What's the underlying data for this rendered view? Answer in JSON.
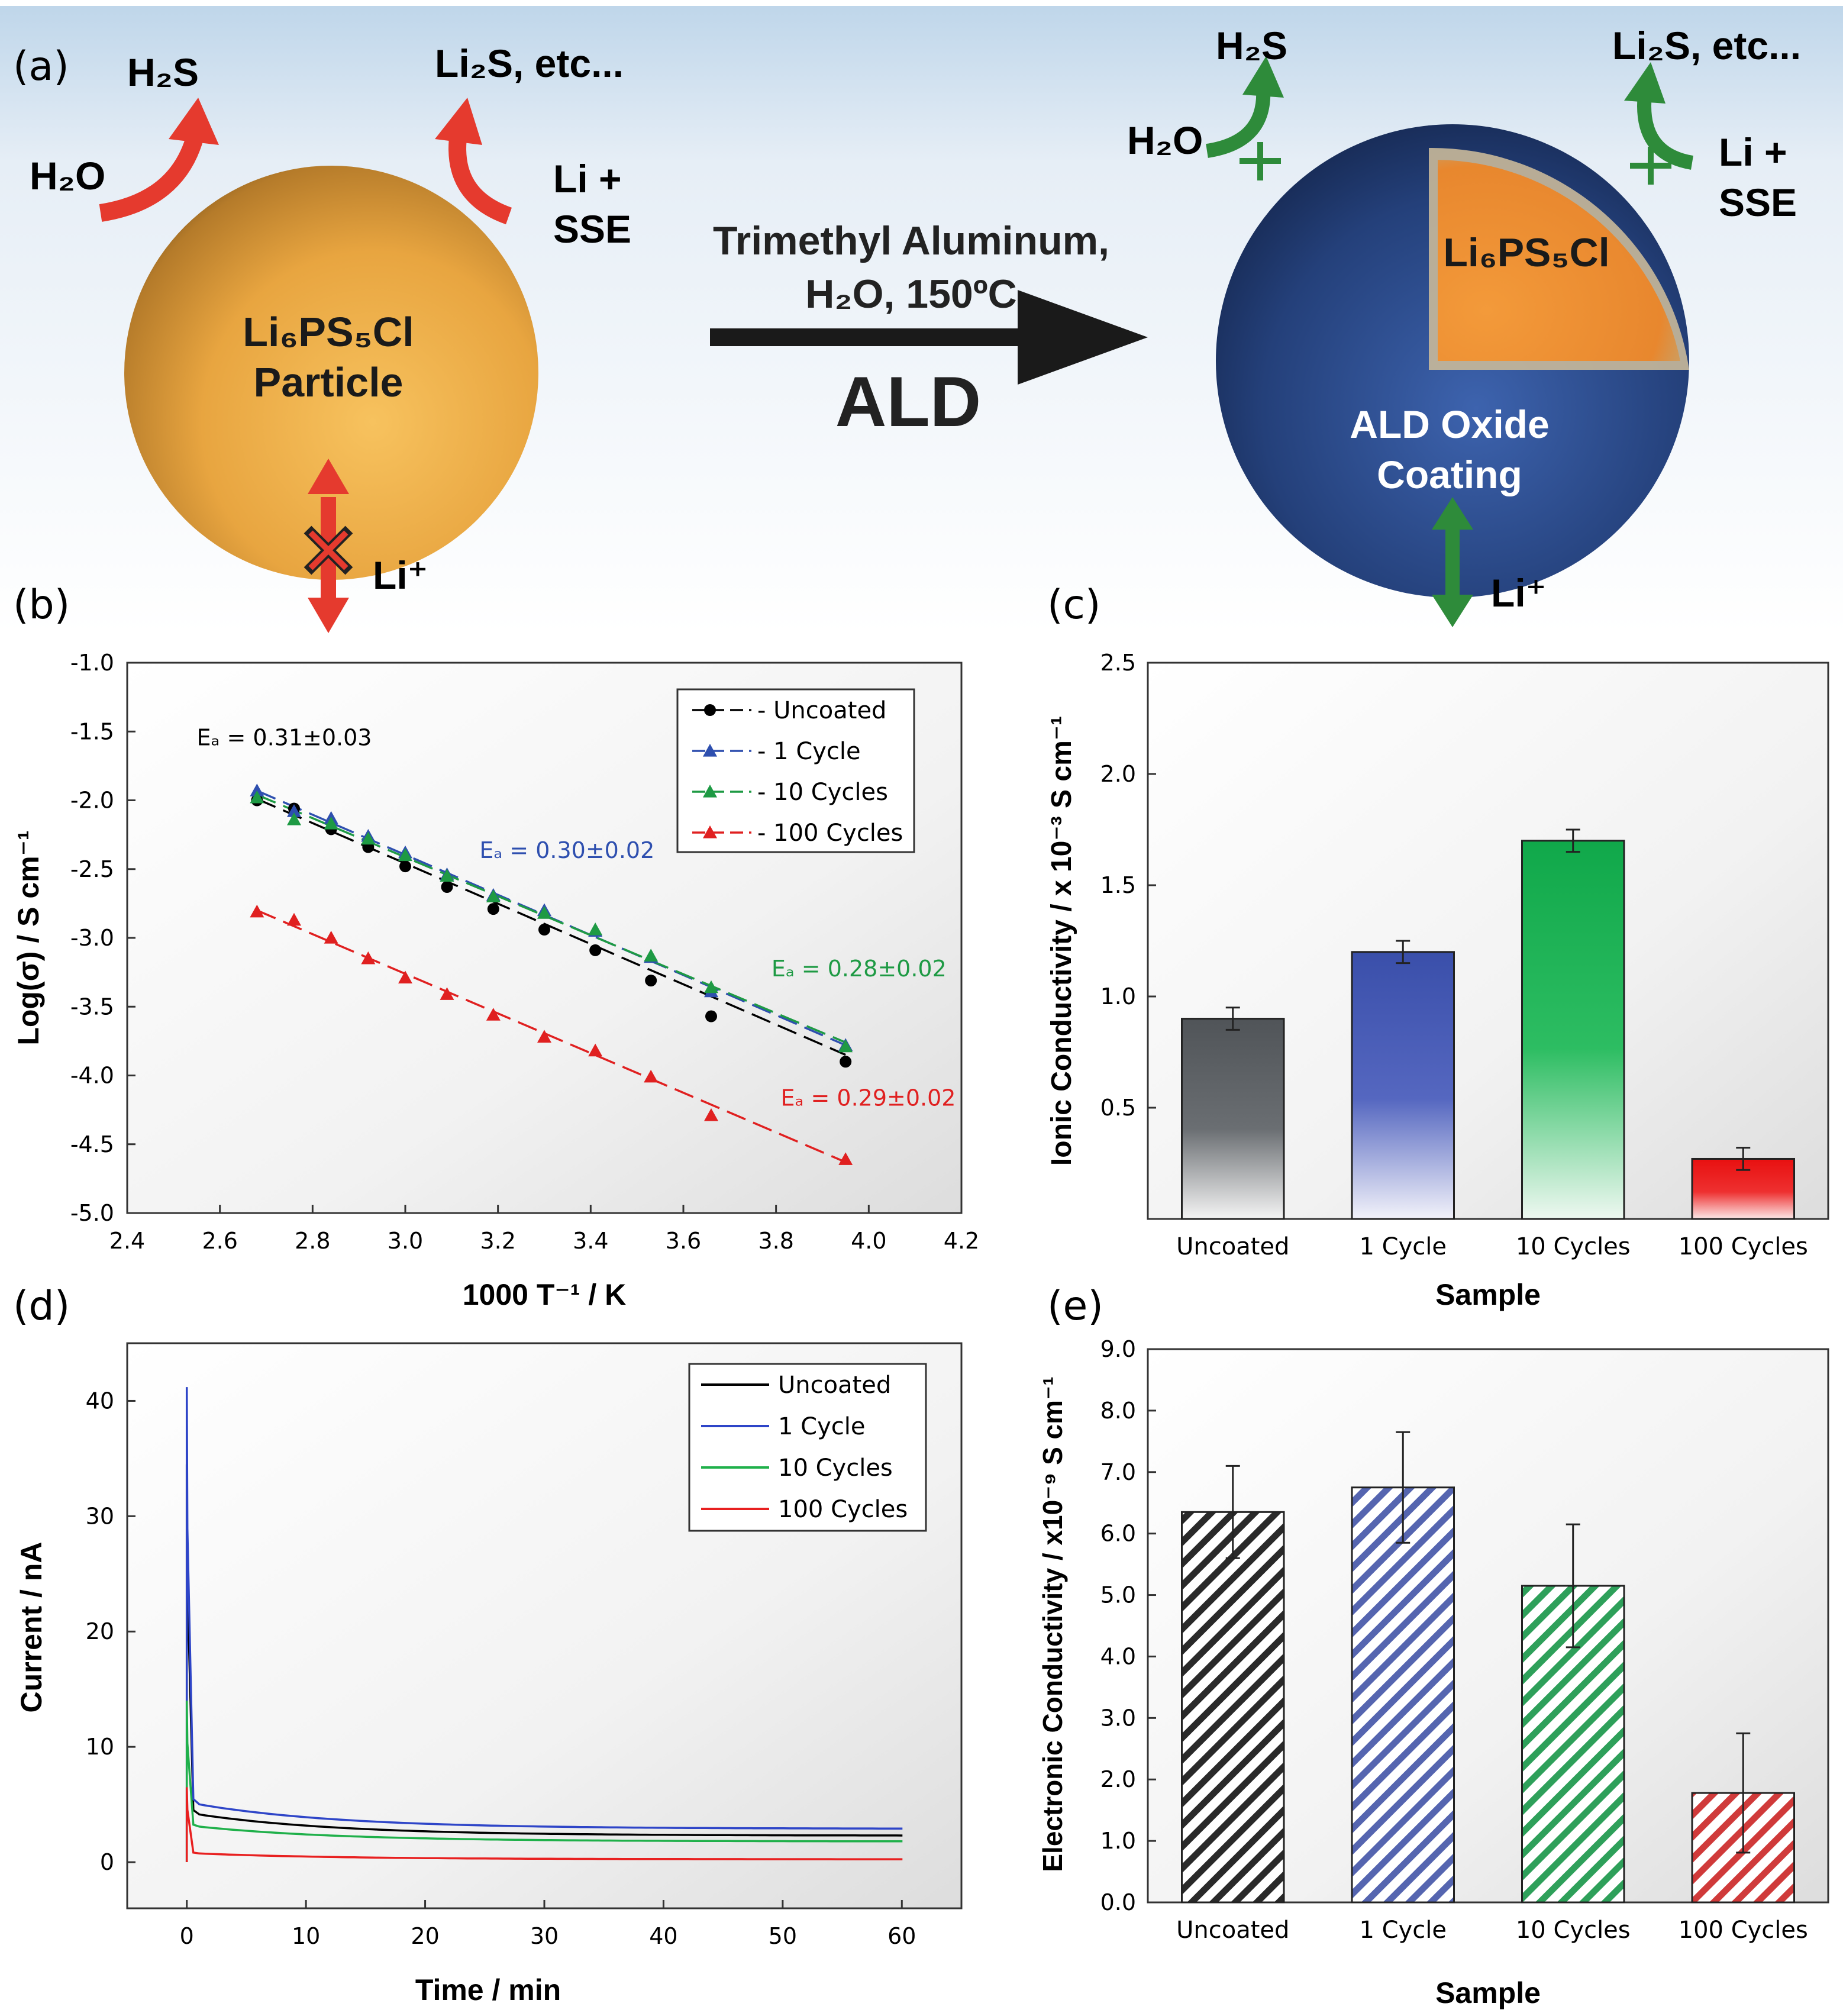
{
  "panel_labels": {
    "a": "(a)",
    "b": "(b)",
    "c": "(c)",
    "d": "(d)",
    "e": "(e)"
  },
  "schematic": {
    "left": {
      "h2s": "H₂S",
      "li2s": "Li₂S, etc...",
      "h2o": "H₂O",
      "li_plus_1": "Li +",
      "li_plus_2": "SSE",
      "particle_1": "Li₆PS₅Cl",
      "particle_2": "Particle",
      "li_ion": "Li⁺"
    },
    "arrow": {
      "line1": "Trimethyl Aluminum,",
      "line2": "H₂O, 150ºC",
      "line3": "ALD"
    },
    "right": {
      "h2s": "H₂S",
      "li2s": "Li₂S, etc...",
      "h2o": "H₂O",
      "li_plus_1": "Li +",
      "li_plus_2": "SSE",
      "core": "Li₆PS₅Cl",
      "coating_1": "ALD Oxide",
      "coating_2": "Coating",
      "li_ion": "Li⁺"
    },
    "colors": {
      "particle": "#E8A540",
      "coating": "#24407A",
      "red_arrow": "#E53A2E",
      "green_arrow": "#2E8B3A"
    }
  },
  "chart_data": [
    {
      "id": "b",
      "type": "scatter",
      "title": "",
      "xlabel": "1000 T⁻¹ / K",
      "ylabel": "Log(σ) / S cm⁻¹",
      "xlim": [
        2.4,
        4.2
      ],
      "ylim": [
        -5.0,
        -1.0
      ],
      "xticks": [
        2.4,
        2.6,
        2.8,
        3.0,
        3.2,
        3.4,
        3.6,
        3.8,
        4.0,
        4.2
      ],
      "xtick_labels": [
        "2.4",
        "2.6",
        "2.8",
        "3.0",
        "3.2",
        "3.4",
        "3.6",
        "3.8",
        "4.0",
        "4.2"
      ],
      "yticks": [
        -1.0,
        -1.5,
        -2.0,
        -2.5,
        -3.0,
        -3.5,
        -4.0,
        -4.5,
        -5.0
      ],
      "ytick_labels": [
        "-1.0",
        "-1.5",
        "-2.0",
        "-2.5",
        "-3.0",
        "-3.5",
        "-4.0",
        "-4.5",
        "-5.0"
      ],
      "legend_position": "top-right",
      "series": [
        {
          "name": "Uncoated",
          "legend": "- Uncoated",
          "marker": "circle",
          "color": "#000000",
          "x": [
            2.68,
            2.76,
            2.84,
            2.92,
            3.0,
            3.09,
            3.19,
            3.3,
            3.41,
            3.53,
            3.66,
            3.95
          ],
          "y": [
            -2.0,
            -2.06,
            -2.21,
            -2.34,
            -2.48,
            -2.63,
            -2.79,
            -2.94,
            -3.09,
            -3.31,
            -3.57,
            -3.9
          ],
          "fit": [
            [
              2.68,
              -1.99
            ],
            [
              3.95,
              -3.85
            ]
          ]
        },
        {
          "name": "1 Cycle",
          "legend": "- 1 Cycle",
          "marker": "triangle",
          "color": "#2E4FAF",
          "x": [
            2.68,
            2.76,
            2.84,
            2.92,
            3.0,
            3.09,
            3.19,
            3.3,
            3.41,
            3.53,
            3.66,
            3.95
          ],
          "y": [
            -1.93,
            -2.08,
            -2.13,
            -2.26,
            -2.38,
            -2.54,
            -2.69,
            -2.8,
            -2.95,
            -3.14,
            -3.39,
            -3.78
          ],
          "fit": [
            [
              2.68,
              -1.93
            ],
            [
              3.95,
              -3.78
            ]
          ]
        },
        {
          "name": "10 Cycles",
          "legend": "- 10 Cycles",
          "marker": "triangle",
          "color": "#1E9A44",
          "x": [
            2.68,
            2.76,
            2.84,
            2.92,
            3.0,
            3.09,
            3.19,
            3.3,
            3.41,
            3.53,
            3.66,
            3.95
          ],
          "y": [
            -1.98,
            -2.14,
            -2.17,
            -2.28,
            -2.4,
            -2.55,
            -2.7,
            -2.82,
            -2.94,
            -3.13,
            -3.36,
            -3.79
          ],
          "fit": [
            [
              2.68,
              -1.96
            ],
            [
              3.95,
              -3.76
            ]
          ]
        },
        {
          "name": "100 Cycles",
          "legend": "- 100 Cycles",
          "marker": "triangle",
          "color": "#E02020",
          "x": [
            2.68,
            2.76,
            2.84,
            2.92,
            3.0,
            3.09,
            3.19,
            3.3,
            3.41,
            3.53,
            3.66,
            3.95
          ],
          "y": [
            -2.81,
            -2.87,
            -3.0,
            -3.15,
            -3.29,
            -3.41,
            -3.56,
            -3.72,
            -3.82,
            -4.01,
            -4.29,
            -4.61
          ],
          "fit": [
            [
              2.68,
              -2.8
            ],
            [
              3.95,
              -4.63
            ]
          ]
        }
      ],
      "annotations": [
        {
          "text": "Eₐ = 0.31±0.03",
          "x": 2.55,
          "y": -1.6,
          "color": "#000000"
        },
        {
          "text": "Eₐ = 0.30±0.02",
          "x": 3.16,
          "y": -2.42,
          "color": "#2E4FAF"
        },
        {
          "text": "Eₐ = 0.28±0.02",
          "x": 3.79,
          "y": -3.28,
          "color": "#1E9A44"
        },
        {
          "text": "Eₐ = 0.29±0.02",
          "x": 3.81,
          "y": -4.22,
          "color": "#E02020"
        }
      ]
    },
    {
      "id": "c",
      "type": "bar",
      "title": "",
      "xlabel": "Sample",
      "ylabel": "Ionic Conductivity / x 10⁻³ S cm⁻¹",
      "categories": [
        "Uncoated",
        "1 Cycle",
        "10 Cycles",
        "100 Cycles"
      ],
      "values": [
        0.9,
        1.2,
        1.7,
        0.27
      ],
      "errors": [
        0.05,
        0.05,
        0.05,
        0.05
      ],
      "colors": [
        "#505458",
        "#3A4FAA",
        "#10A84A",
        "#E81010"
      ],
      "ylim": [
        0.0,
        2.5
      ],
      "yticks": [
        0.5,
        1.0,
        1.5,
        2.0,
        2.5
      ],
      "ytick_labels": [
        "0.5",
        "1.0",
        "1.5",
        "2.0",
        "2.5"
      ]
    },
    {
      "id": "d",
      "type": "line",
      "title": "",
      "xlabel": "Time / min",
      "ylabel": "Current / nA",
      "xlim": [
        -5,
        65
      ],
      "ylim": [
        -4,
        45
      ],
      "xticks": [
        0,
        10,
        20,
        30,
        40,
        50,
        60
      ],
      "xtick_labels": [
        "0",
        "10",
        "20",
        "30",
        "40",
        "50",
        "60"
      ],
      "yticks": [
        0,
        10,
        20,
        30,
        40
      ],
      "ytick_labels": [
        "0",
        "10",
        "20",
        "30",
        "40"
      ],
      "legend_position": "top-right",
      "series": [
        {
          "name": "Uncoated",
          "color": "#000000",
          "peak": 34.5,
          "initial": 4.3,
          "tail": 2.3
        },
        {
          "name": "1 Cycle",
          "color": "#2E45C8",
          "peak": 41.2,
          "initial": 5.2,
          "tail": 2.9
        },
        {
          "name": "10 Cycles",
          "color": "#1FB04A",
          "peak": 14.0,
          "initial": 3.2,
          "tail": 1.8
        },
        {
          "name": "100 Cycles",
          "color": "#E82020",
          "peak": 6.5,
          "initial": 0.8,
          "tail": 0.25
        }
      ]
    },
    {
      "id": "e",
      "type": "bar",
      "title": "",
      "xlabel": "Sample",
      "ylabel": "Electronic Conductivity / x10⁻⁹ S cm⁻¹",
      "categories": [
        "Uncoated",
        "1 Cycle",
        "10 Cycles",
        "100 Cycles"
      ],
      "values": [
        6.35,
        6.75,
        5.15,
        1.78
      ],
      "errors": [
        0.75,
        0.9,
        1.0,
        0.97
      ],
      "colors": [
        "#2A2A2A",
        "#5565B0",
        "#2EA05A",
        "#D03A3A"
      ],
      "hatch": true,
      "ylim": [
        0.0,
        9.0
      ],
      "yticks": [
        0.0,
        1.0,
        2.0,
        3.0,
        4.0,
        5.0,
        6.0,
        7.0,
        8.0,
        9.0
      ],
      "ytick_labels": [
        "0.0",
        "1.0",
        "2.0",
        "3.0",
        "4.0",
        "5.0",
        "6.0",
        "7.0",
        "8.0",
        "9.0"
      ]
    }
  ]
}
